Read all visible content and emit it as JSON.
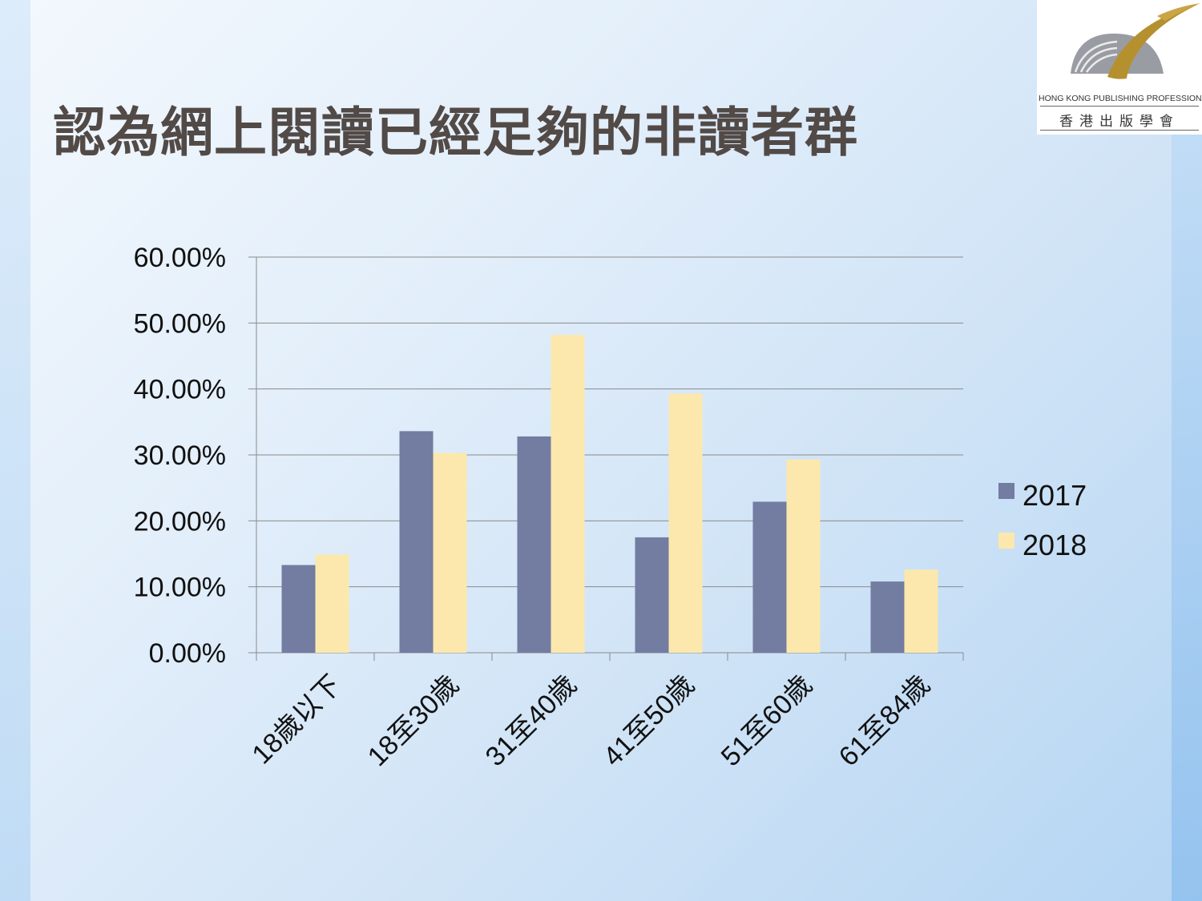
{
  "slide": {
    "title": "認為網上閱讀已經足夠的非讀者群"
  },
  "logo": {
    "name_en": "HONG KONG PUBLISHING PROFESSIONALS SOCIETY",
    "name_zh": "香港出版學會"
  },
  "colors": {
    "series_2017": "#737ca1",
    "series_2018": "#fce8ad",
    "gridline": "#8a8a8a",
    "title": "#524a47"
  },
  "chart_data": {
    "type": "bar",
    "categories": [
      "18歲以下",
      "18至30歲",
      "31至40歲",
      "41至50歲",
      "51至60歲",
      "61至84歲"
    ],
    "series": [
      {
        "name": "2017",
        "values": [
          13.3,
          33.6,
          32.8,
          17.5,
          22.9,
          10.8
        ]
      },
      {
        "name": "2018",
        "values": [
          14.9,
          30.3,
          48.2,
          39.3,
          29.3,
          12.6
        ]
      }
    ],
    "y_ticks": [
      "0.00%",
      "10.00%",
      "20.00%",
      "30.00%",
      "40.00%",
      "50.00%",
      "60.00%"
    ],
    "ylim": [
      0,
      60
    ],
    "grid": true,
    "legend_position": "right"
  }
}
